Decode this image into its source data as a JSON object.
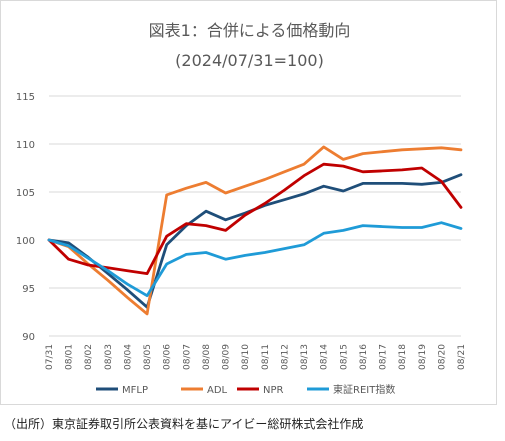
{
  "chart_data": {
    "type": "line",
    "title": "図表1：合併による価格動向",
    "subtitle": "(2024/07/31=100)",
    "categories": [
      "07/31",
      "08/01",
      "08/02",
      "08/03",
      "08/04",
      "08/05",
      "08/06",
      "08/07",
      "08/08",
      "08/09",
      "08/10",
      "08/11",
      "08/12",
      "08/13",
      "08/14",
      "08/15",
      "08/16",
      "08/17",
      "08/18",
      "08/19",
      "08/20",
      "08/21"
    ],
    "ylim": [
      90,
      115
    ],
    "yticks": [
      "90",
      "95",
      "100",
      "105",
      "110",
      "115"
    ],
    "grid": true,
    "legend_position": "bottom",
    "series": [
      {
        "name": "MFLP",
        "color": "#1f4e79",
        "values": [
          100,
          99.7,
          98.2,
          96.5,
          94.8,
          93.0,
          99.5,
          101.5,
          103.0,
          102.1,
          102.8,
          103.6,
          104.2,
          104.8,
          105.6,
          105.1,
          105.9,
          105.9,
          105.9,
          105.8,
          106.0,
          106.8
        ]
      },
      {
        "name": "ADL",
        "color": "#ed7d31",
        "values": [
          100,
          99.3,
          97.5,
          95.8,
          94.0,
          92.3,
          104.7,
          105.4,
          106.0,
          104.9,
          105.6,
          106.3,
          107.1,
          107.9,
          109.7,
          108.4,
          109.0,
          109.2,
          109.4,
          109.5,
          109.6,
          109.4
        ]
      },
      {
        "name": "NPR",
        "color": "#c00000",
        "values": [
          100,
          98.0,
          97.4,
          97.1,
          96.8,
          96.5,
          100.4,
          101.7,
          101.5,
          101.0,
          102.6,
          103.8,
          105.2,
          106.7,
          107.9,
          107.7,
          107.1,
          107.2,
          107.3,
          107.5,
          106.1,
          103.4
        ]
      },
      {
        "name": "東証REIT指数",
        "color": "#1f9bd7",
        "values": [
          100,
          99.4,
          98.1,
          96.8,
          95.4,
          94.2,
          97.5,
          98.5,
          98.7,
          98.0,
          98.4,
          98.7,
          99.1,
          99.5,
          100.7,
          101.0,
          101.5,
          101.4,
          101.3,
          101.3,
          101.8,
          101.2
        ]
      }
    ]
  },
  "footer": {
    "source": "（出所）東京証券取引所公表資料を基にアイビー総研株式会社作成"
  }
}
